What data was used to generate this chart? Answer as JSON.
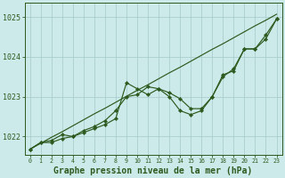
{
  "bg_color": "#cceaea",
  "grid_color": "#aacece",
  "line_color": "#2d5a1e",
  "marker_color": "#2d5a1e",
  "xlabel": "Graphe pression niveau de la mer (hPa)",
  "xlabel_fontsize": 7.0,
  "ylabel_ticks": [
    1022,
    1023,
    1024,
    1025
  ],
  "xlim": [
    -0.5,
    23.5
  ],
  "ylim": [
    1021.55,
    1025.35
  ],
  "x_hours": [
    0,
    1,
    2,
    3,
    4,
    5,
    6,
    7,
    8,
    9,
    10,
    11,
    12,
    13,
    14,
    15,
    16,
    17,
    18,
    19,
    20,
    21,
    22,
    23
  ],
  "series_linear": [
    1021.68,
    1021.83,
    1021.98,
    1022.12,
    1022.27,
    1022.42,
    1022.57,
    1022.71,
    1022.86,
    1023.01,
    1023.16,
    1023.3,
    1023.45,
    1023.6,
    1023.74,
    1023.89,
    1024.04,
    1024.19,
    1024.33,
    1024.48,
    1024.63,
    1024.78,
    1024.92,
    1025.07
  ],
  "series_wide": [
    1021.68,
    1021.85,
    1021.85,
    1021.95,
    1022.0,
    1022.1,
    1022.2,
    1022.3,
    1022.45,
    1023.35,
    1023.2,
    1023.05,
    1023.2,
    1023.0,
    1022.65,
    1022.55,
    1022.65,
    1023.0,
    1023.55,
    1023.65,
    1024.2,
    1024.2,
    1024.55,
    1024.95
  ],
  "series_close": [
    1021.68,
    1021.85,
    1021.9,
    1022.05,
    1022.0,
    1022.15,
    1022.25,
    1022.4,
    1022.65,
    1023.0,
    1023.05,
    1023.25,
    1023.2,
    1023.1,
    1022.95,
    1022.7,
    1022.7,
    1023.0,
    1023.5,
    1023.7,
    1024.2,
    1024.2,
    1024.45,
    1024.95
  ]
}
